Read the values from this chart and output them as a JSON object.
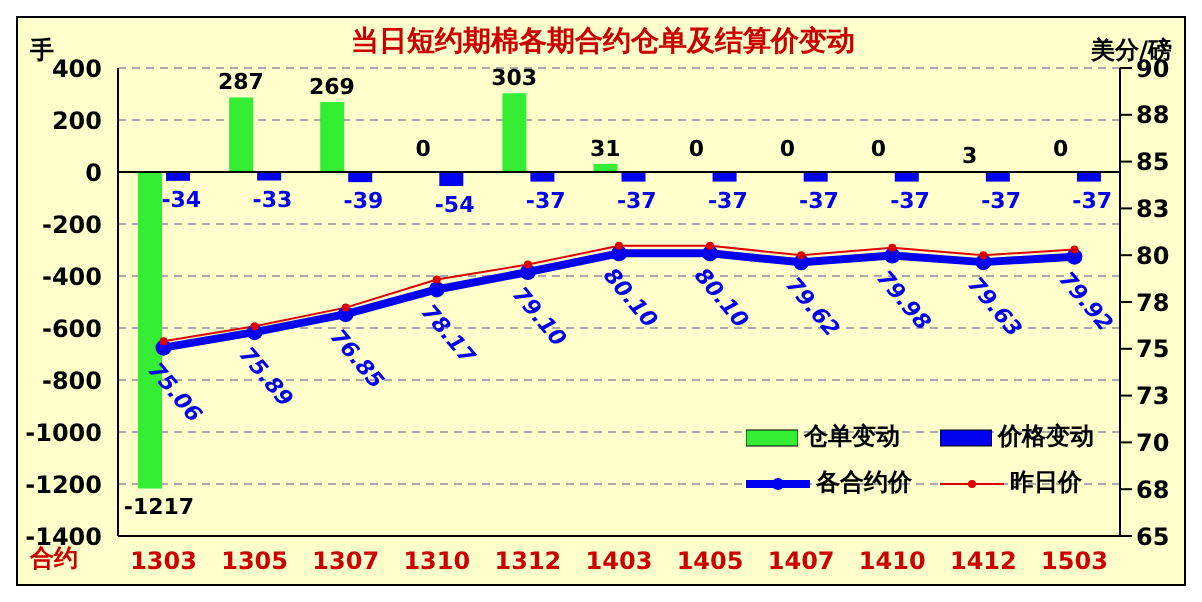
{
  "chart_data": {
    "type": "bar",
    "title": "当日短约期棉各期合约仓单及结算价变动",
    "xlabel": "合约",
    "ylabel": "手",
    "y2label": "美分/磅",
    "categories": [
      "1303",
      "1305",
      "1307",
      "1310",
      "1312",
      "1403",
      "1405",
      "1407",
      "1410",
      "1412",
      "1503"
    ],
    "series": [
      {
        "name": "仓单变动",
        "color": "#33ee33",
        "values": [
          -1217,
          287,
          269,
          0,
          303,
          31,
          0,
          0,
          0,
          3,
          0
        ],
        "value_labels": [
          "-1217",
          "287",
          "269",
          "0",
          "303",
          "31",
          "0",
          "0",
          "0",
          "3",
          "0"
        ]
      },
      {
        "name": "价格变动",
        "color": "#0000ee",
        "values": [
          -34,
          -33,
          -39,
          -54,
          -37,
          -37,
          -37,
          -37,
          -37,
          -37,
          -37
        ],
        "value_labels": [
          "-34",
          "-33",
          "-39",
          "-54",
          "-37",
          "-37",
          "-37",
          "-37",
          "-37",
          "-37",
          "-37"
        ]
      },
      {
        "name": "各合约价",
        "type": "line",
        "axis": "y2",
        "color": "#0000ee",
        "marker": "circle",
        "values": [
          75.06,
          75.89,
          76.85,
          78.17,
          79.1,
          80.1,
          80.1,
          79.62,
          79.98,
          79.63,
          79.92
        ],
        "value_labels": [
          "75.06",
          "75.89",
          "76.85",
          "78.17",
          "79.10",
          "80.10",
          "80.10",
          "79.62",
          "79.98",
          "79.63",
          "79.92"
        ]
      },
      {
        "name": "昨日价",
        "type": "line",
        "axis": "y2",
        "color": "#dd0000",
        "marker": "circle",
        "values": [
          75.4,
          76.2,
          77.2,
          78.7,
          79.5,
          80.5,
          80.5,
          80.0,
          80.4,
          80.0,
          80.3
        ]
      }
    ],
    "ylim": [
      -1400,
      400
    ],
    "yticks": [
      -1400,
      -1200,
      -1000,
      -800,
      -600,
      -400,
      -200,
      0,
      200,
      400
    ],
    "y2lim": [
      65,
      90
    ],
    "y2ticks": [
      65,
      {
        "value": 67.5,
        "label": "68"
      },
      70,
      {
        "value": 72.5,
        "label": "73"
      },
      75,
      {
        "value": 77.5,
        "label": "78"
      },
      80,
      {
        "value": 82.5,
        "label": "83"
      },
      85,
      {
        "value": 87.5,
        "label": "88"
      },
      90
    ],
    "grid": "y",
    "legend": "bottom right"
  }
}
